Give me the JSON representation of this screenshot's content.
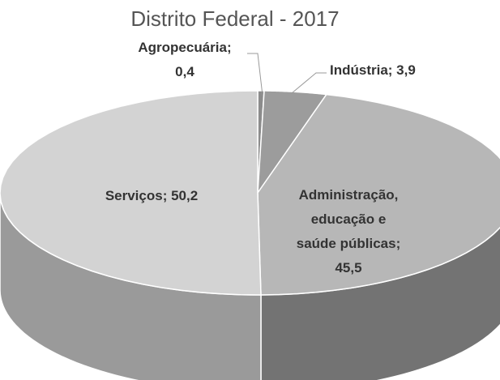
{
  "chart_data": {
    "type": "pie",
    "title": "Distrito Federal - 2017",
    "values": [
      0.4,
      3.9,
      45.5,
      50.2
    ],
    "value_labels": [
      [
        "Agropecuária;",
        "0,4"
      ],
      [
        "Indústria; 3,9"
      ],
      [
        "Administração,",
        "educação e",
        "saúde públicas;",
        "45,5"
      ],
      [
        "Serviços; 50,2"
      ]
    ],
    "colors": [
      "#8c8c8c",
      "#9c9c9c",
      "#b7b7b7",
      "#d3d3d3"
    ],
    "side_colors": [
      "#5e5e5e",
      "#6a6a6a",
      "#737373",
      "#9a9a9a"
    ]
  }
}
